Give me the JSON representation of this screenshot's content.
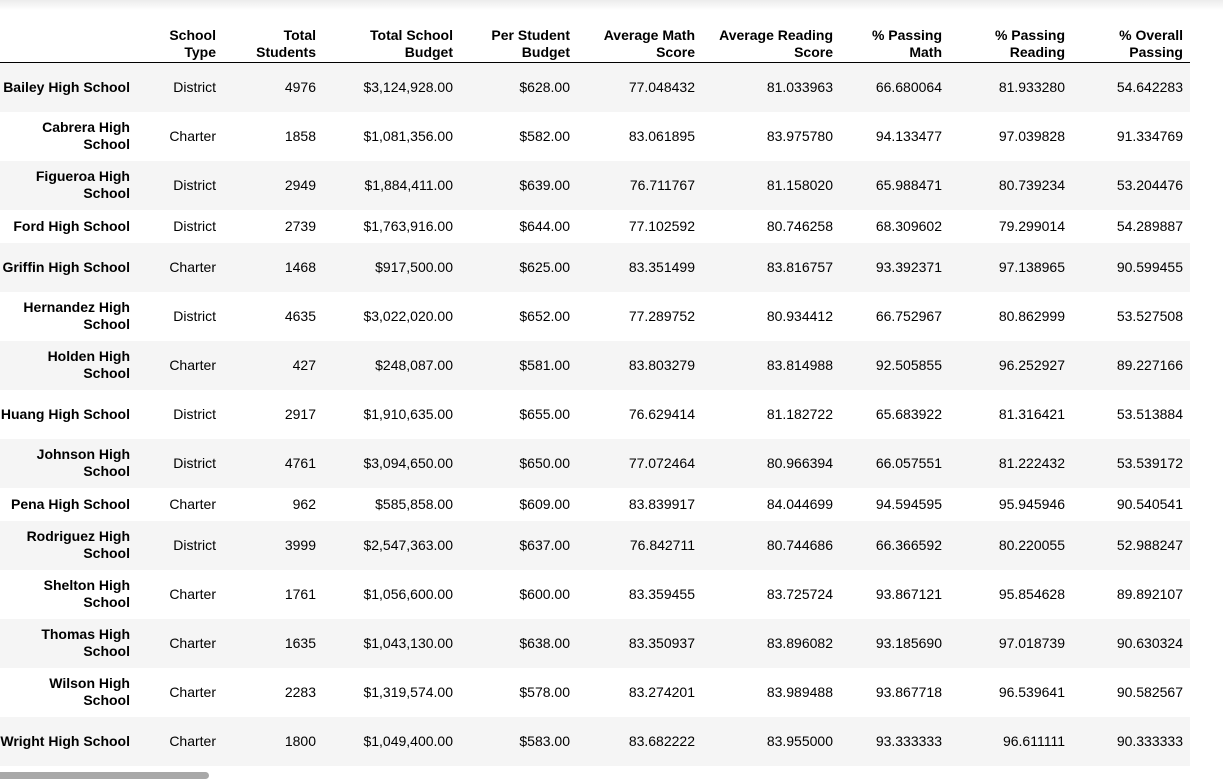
{
  "table": {
    "columns": [
      "",
      "School Type",
      "Total Students",
      "Total School Budget",
      "Per Student Budget",
      "Average Math Score",
      "Average Reading Score",
      "% Passing Math",
      "% Passing Reading",
      "% Overall Passing"
    ],
    "rows": [
      [
        "Bailey High School",
        "District",
        "4976",
        "$3,124,928.00",
        "$628.00",
        "77.048432",
        "81.033963",
        "66.680064",
        "81.933280",
        "54.642283"
      ],
      [
        "Cabrera High School",
        "Charter",
        "1858",
        "$1,081,356.00",
        "$582.00",
        "83.061895",
        "83.975780",
        "94.133477",
        "97.039828",
        "91.334769"
      ],
      [
        "Figueroa High School",
        "District",
        "2949",
        "$1,884,411.00",
        "$639.00",
        "76.711767",
        "81.158020",
        "65.988471",
        "80.739234",
        "53.204476"
      ],
      [
        "Ford High School",
        "District",
        "2739",
        "$1,763,916.00",
        "$644.00",
        "77.102592",
        "80.746258",
        "68.309602",
        "79.299014",
        "54.289887"
      ],
      [
        "Griffin High School",
        "Charter",
        "1468",
        "$917,500.00",
        "$625.00",
        "83.351499",
        "83.816757",
        "93.392371",
        "97.138965",
        "90.599455"
      ],
      [
        "Hernandez High School",
        "District",
        "4635",
        "$3,022,020.00",
        "$652.00",
        "77.289752",
        "80.934412",
        "66.752967",
        "80.862999",
        "53.527508"
      ],
      [
        "Holden High School",
        "Charter",
        "427",
        "$248,087.00",
        "$581.00",
        "83.803279",
        "83.814988",
        "92.505855",
        "96.252927",
        "89.227166"
      ],
      [
        "Huang High School",
        "District",
        "2917",
        "$1,910,635.00",
        "$655.00",
        "76.629414",
        "81.182722",
        "65.683922",
        "81.316421",
        "53.513884"
      ],
      [
        "Johnson High School",
        "District",
        "4761",
        "$3,094,650.00",
        "$650.00",
        "77.072464",
        "80.966394",
        "66.057551",
        "81.222432",
        "53.539172"
      ],
      [
        "Pena High School",
        "Charter",
        "962",
        "$585,858.00",
        "$609.00",
        "83.839917",
        "84.044699",
        "94.594595",
        "95.945946",
        "90.540541"
      ],
      [
        "Rodriguez High School",
        "District",
        "3999",
        "$2,547,363.00",
        "$637.00",
        "76.842711",
        "80.744686",
        "66.366592",
        "80.220055",
        "52.988247"
      ],
      [
        "Shelton High School",
        "Charter",
        "1761",
        "$1,056,600.00",
        "$600.00",
        "83.359455",
        "83.725724",
        "93.867121",
        "95.854628",
        "89.892107"
      ],
      [
        "Thomas High School",
        "Charter",
        "1635",
        "$1,043,130.00",
        "$638.00",
        "83.350937",
        "83.896082",
        "93.185690",
        "97.018739",
        "90.630324"
      ],
      [
        "Wilson High School",
        "Charter",
        "2283",
        "$1,319,574.00",
        "$578.00",
        "83.274201",
        "83.989488",
        "93.867718",
        "96.539641",
        "90.582567"
      ],
      [
        "Wright High School",
        "Charter",
        "1800",
        "$1,049,400.00",
        "$583.00",
        "83.682222",
        "83.955000",
        "93.333333",
        "96.611111",
        "90.333333"
      ]
    ]
  }
}
